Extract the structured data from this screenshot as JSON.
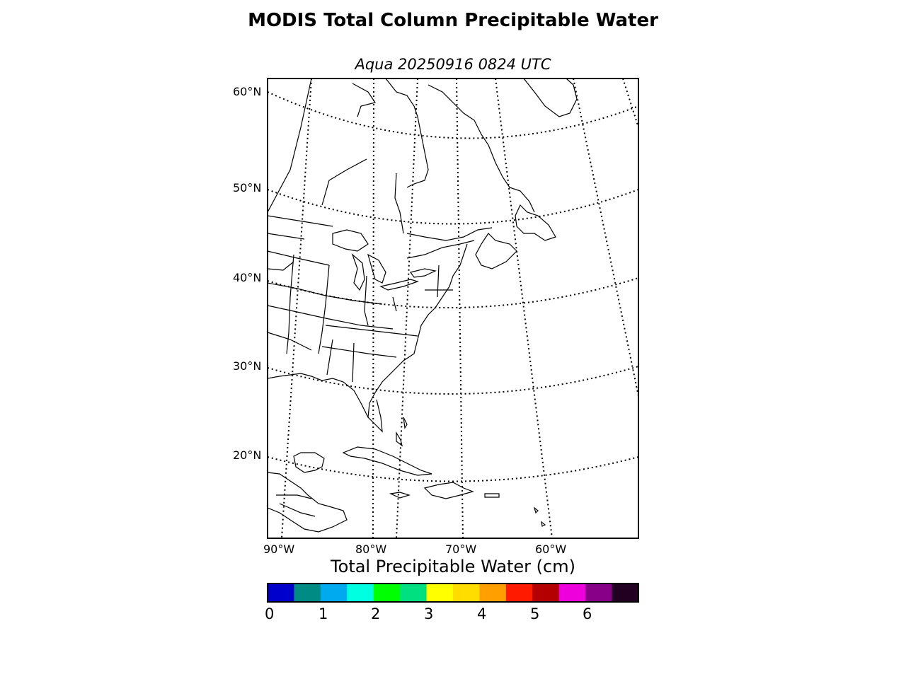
{
  "title": "MODIS Total Column Precipitable Water",
  "subtitle": "Aqua 20250916 0824 UTC",
  "map": {
    "lat_labels": [
      "60°N",
      "50°N",
      "40°N",
      "30°N",
      "20°N"
    ],
    "lon_labels": [
      "90°W",
      "80°W",
      "70°W",
      "60°W"
    ],
    "coastline_color": "#000000",
    "graticule_style": "dotted"
  },
  "colorbar": {
    "label": "Total Precipitable Water (cm)",
    "ticks": [
      "0",
      "1",
      "2",
      "3",
      "4",
      "5",
      "6"
    ],
    "colors": [
      "#0000cc",
      "#008c84",
      "#00aaee",
      "#00ffe0",
      "#00ff00",
      "#00e080",
      "#ffff00",
      "#ffdd00",
      "#ffa000",
      "#ff1a00",
      "#b40000",
      "#ee00dd",
      "#880088",
      "#220022"
    ]
  }
}
